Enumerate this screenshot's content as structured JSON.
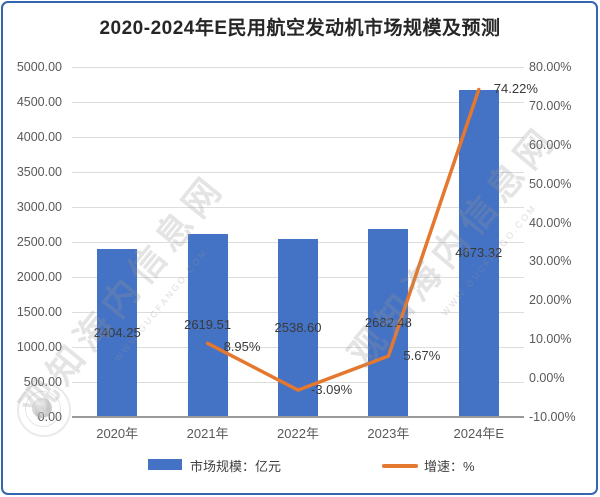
{
  "title": "2020-2024年E民用航空发动机市场规模及预测",
  "colors": {
    "bar": "#4472C4",
    "line": "#E4782E",
    "frame_border": "#3465AE",
    "gridline": "#DCDCDC",
    "axis_line": "#9A9A9A",
    "tick_text": "#595959",
    "data_label_text": "#3A3A3A"
  },
  "chart_data": {
    "type": "bar+line combo",
    "title": "2020-2024年E民用航空发动机市场规模及预测",
    "categories": [
      "2020年",
      "2021年",
      "2022年",
      "2023年",
      "2024年E"
    ],
    "series": [
      {
        "name": "市场规模：亿元",
        "type": "bar",
        "axis": "left",
        "values": [
          2404.25,
          2619.51,
          2538.6,
          2682.48,
          4673.32
        ],
        "labels": [
          "2404.25",
          "2619.51",
          "2538.60",
          "2682.48",
          "4673.32"
        ]
      },
      {
        "name": "增速：%",
        "type": "line",
        "axis": "right",
        "values": [
          null,
          8.95,
          -3.09,
          5.67,
          74.22
        ],
        "labels": [
          null,
          "8.95%",
          "-3.09%",
          "5.67%",
          "74.22%"
        ]
      }
    ],
    "left_axis": {
      "min": 0,
      "max": 5000,
      "step": 500,
      "tick_labels": [
        "5000.00",
        "4500.00",
        "4000.00",
        "3500.00",
        "3000.00",
        "2500.00",
        "2000.00",
        "1500.00",
        "1000.00",
        "500.00",
        "0.00"
      ]
    },
    "right_axis": {
      "min": -10,
      "max": 80,
      "step": 10,
      "tick_labels": [
        "80.00%",
        "70.00%",
        "60.00%",
        "50.00%",
        "40.00%",
        "30.00%",
        "20.00%",
        "10.00%",
        "0.00%",
        "-10.00%"
      ]
    },
    "grid": true,
    "legend_position": "bottom"
  },
  "legend": {
    "items": [
      {
        "label": "市场规模：亿元",
        "swatch": "bar"
      },
      {
        "label": "增速：%",
        "swatch": "line"
      }
    ]
  },
  "watermark": {
    "text": "观知海内信息网",
    "subtext": "WWW.GUCFANGO.COM"
  }
}
